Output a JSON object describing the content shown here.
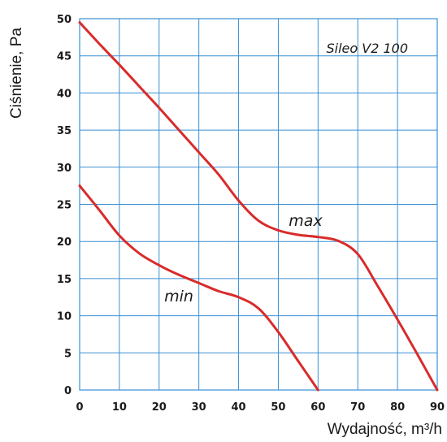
{
  "chart_data": {
    "type": "line",
    "title": "",
    "model_label": "Sileo V2 100",
    "xlabel": "Wydajność, m³/h",
    "ylabel": "Ciśnienie, Pa",
    "xlim": [
      0,
      90
    ],
    "ylim": [
      0,
      50
    ],
    "xticks": [
      0,
      10,
      20,
      30,
      40,
      50,
      60,
      70,
      80,
      90
    ],
    "yticks": [
      0,
      5,
      10,
      15,
      20,
      25,
      30,
      35,
      40,
      45,
      50
    ],
    "grid": true,
    "line_color": "#d92b2b",
    "grid_color": "#3a8fd4",
    "series": [
      {
        "name": "max",
        "x": [
          0,
          5,
          10,
          15,
          20,
          25,
          30,
          35,
          40,
          45,
          50,
          55,
          60,
          65,
          70,
          75,
          80,
          85,
          90
        ],
        "y": [
          49.5,
          46.6,
          43.8,
          40.9,
          38.0,
          35.0,
          32.0,
          29.0,
          25.5,
          22.8,
          21.5,
          20.9,
          20.6,
          20.1,
          18.3,
          14.0,
          9.5,
          4.8,
          0.0
        ]
      },
      {
        "name": "min",
        "x": [
          0,
          5,
          10,
          15,
          20,
          25,
          30,
          35,
          40,
          45,
          50,
          55,
          60
        ],
        "y": [
          27.5,
          24.2,
          20.8,
          18.4,
          16.8,
          15.5,
          14.4,
          13.3,
          12.5,
          11.0,
          7.8,
          3.9,
          0.0
        ]
      }
    ],
    "annotations": [
      {
        "text": "max",
        "series": "max"
      },
      {
        "text": "min",
        "series": "min"
      }
    ]
  }
}
